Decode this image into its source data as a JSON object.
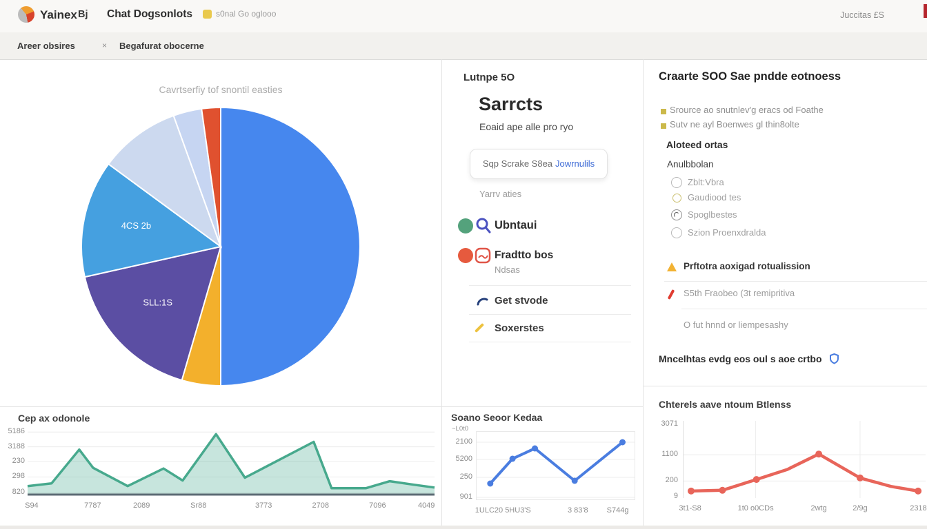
{
  "header": {
    "logo_text": "Yainex",
    "nav_by": "Bj",
    "nav_chat": "Chat Dogsonlots",
    "badge_text": "s0nal Go oglooo",
    "right_text": "Juccitas £S",
    "accent_color": "#b5252c"
  },
  "tabs": {
    "tab1": "Areer obsires",
    "tab1_close": "×",
    "tab2": "Begafurat obocerne"
  },
  "middle": {
    "kicker": "Lutnpe 5O",
    "title": "Sarrcts",
    "subtitle": "Eoaid ape alle pro ryo",
    "search_text": "Sqp Scrake S8ea",
    "search_link": "Jowrnulils",
    "list_header": "Yarrv aties",
    "items": [
      {
        "label": "Ubntaui"
      },
      {
        "label": "Fradtto bos",
        "sub": "Ndsas"
      },
      {
        "label": "Get stvode"
      },
      {
        "label": "Soxerstes"
      }
    ],
    "dot_colors": [
      "#54a27c",
      "#e65a3e"
    ]
  },
  "right": {
    "title": "Craarte SOO Sae pndde eotnoess",
    "bullets": [
      "Srource ao snutnlev'g eracs od Foathe",
      "Sutv ne ayl Boenwes gl thin8olte"
    ],
    "subheading": "Aloteed ortas",
    "group_label": "Anulbbolan",
    "radios": [
      "Zblt:Vbra",
      "Gaudiood tes",
      "Spoglbestes",
      "Szion Proenxdralda"
    ],
    "warning": "Prftotra aoxigad rotualission",
    "error": "S5th Fraobeo (3t remipritiva",
    "note": "O fut hnnd or liempesashy",
    "footer": "Mncelhtas evdg eos oul s aoe crtbo"
  },
  "chart_data": [
    {
      "type": "pie",
      "title": "Cavrtserfiy tof snontil easties",
      "legend_position": "none",
      "slices": [
        {
          "label": "",
          "value": 50.0,
          "color": "#4687ee"
        },
        {
          "label": "",
          "value": 4.5,
          "color": "#f3b02c"
        },
        {
          "label": "SLL:1S",
          "value": 17.0,
          "color": "#5b4ea3"
        },
        {
          "label": "4CS 2b",
          "value": 13.6,
          "color": "#45a0e0"
        },
        {
          "label": "",
          "value": 9.4,
          "color": "#ccd9ef"
        },
        {
          "label": "",
          "value": 3.3,
          "color": "#c6d5f2"
        },
        {
          "label": "",
          "value": 2.2,
          "color": "#e0512f"
        }
      ]
    },
    {
      "type": "area",
      "title": "Cep ax odonole",
      "color": "#47a98d",
      "ylim": [
        0,
        100
      ],
      "grid": true,
      "y_ticks": [
        "5186",
        "3188",
        "230",
        "298",
        "820"
      ],
      "y_tick_pos": [
        0.1,
        0.31,
        0.52,
        0.74,
        0.96
      ],
      "x_ticks": [
        "S94",
        "7787",
        "2089",
        "Sr88",
        "3773",
        "2708",
        "7096",
        "4049"
      ],
      "x_tick_pos": [
        0.01,
        0.16,
        0.28,
        0.42,
        0.58,
        0.72,
        0.86,
        0.98
      ],
      "points": [
        [
          0,
          13
        ],
        [
          5.9,
          17
        ],
        [
          12.7,
          65
        ],
        [
          16.1,
          39
        ],
        [
          24.6,
          13
        ],
        [
          33.4,
          38
        ],
        [
          38.1,
          21
        ],
        [
          46.3,
          87
        ],
        [
          53.4,
          25
        ],
        [
          70.3,
          76
        ],
        [
          74.7,
          10
        ],
        [
          83.1,
          10
        ],
        [
          89,
          20
        ],
        [
          94.9,
          15
        ],
        [
          100,
          11
        ]
      ]
    },
    {
      "type": "line",
      "title": "Soano Seoor Kedaa",
      "subtitle": "~L0t0",
      "color": "#4a7de0",
      "ylim": [
        0,
        100
      ],
      "grid": true,
      "y_ticks": [
        "2100",
        "5200",
        "250",
        "901"
      ],
      "y_tick_pos": [
        0.16,
        0.41,
        0.67,
        0.96
      ],
      "x_ticks": [
        "1ULC20 5HU3'S",
        "3 83'8",
        "S744g"
      ],
      "x_tick_pos": [
        0.17,
        0.64,
        0.89
      ],
      "points": [
        [
          9,
          24
        ],
        [
          23,
          60
        ],
        [
          37,
          75
        ],
        [
          62,
          28
        ],
        [
          92,
          84
        ]
      ],
      "markers": "all"
    },
    {
      "type": "line",
      "title": "Chterels aave ntoum Btlenss",
      "color": "#e8655a",
      "ylim": [
        0,
        100
      ],
      "grid": true,
      "y_ticks": [
        "3071",
        "1100",
        "200",
        "9"
      ],
      "y_tick_pos": [
        0.045,
        0.44,
        0.78,
        0.98
      ],
      "x_ticks": [
        "3t1-S8",
        "1t0 o0CDs",
        "2wtg",
        "2/9g",
        "2318"
      ],
      "x_tick_pos": [
        0.03,
        0.3,
        0.56,
        0.73,
        0.97
      ],
      "points": [
        [
          3.4,
          9
        ],
        [
          16.3,
          10
        ],
        [
          30.3,
          24
        ],
        [
          43,
          37
        ],
        [
          56,
          57
        ],
        [
          73,
          26
        ],
        [
          85.7,
          15
        ],
        [
          96.9,
          9
        ]
      ],
      "marker_indices": [
        0,
        1,
        2,
        4,
        5,
        7
      ]
    }
  ]
}
